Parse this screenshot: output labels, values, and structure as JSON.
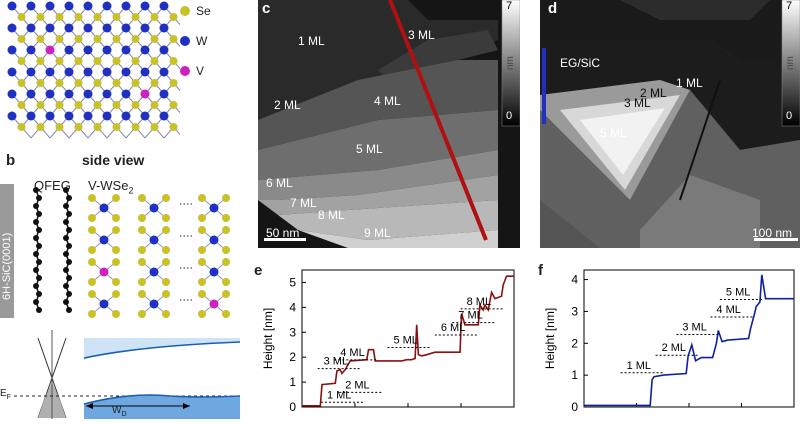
{
  "panel_b": {
    "label": "b",
    "side_view_title": "side view",
    "qfeg": "QFEG",
    "vwse2_main": "V-WSe",
    "vwse2_sub": "2",
    "substrate": "6H-SiC(0001)"
  },
  "legend": {
    "se": "Se",
    "w": "W",
    "v": "V"
  },
  "band_labels": {
    "ef": "E",
    "ef_sub": "F",
    "w": "W",
    "w_sub": "D"
  },
  "panel_c": {
    "label": "c",
    "ml_labels": [
      "1 ML",
      "2 ML",
      "3 ML",
      "4 ML",
      "5 ML",
      "6 ML",
      "7 ML",
      "8 ML",
      "9 ML"
    ],
    "scalebar": "50 nm",
    "colorbar_max": "7",
    "colorbar_min": "0",
    "colorbar_unit": "nm"
  },
  "panel_d": {
    "label": "d",
    "eg_label": "EG/SiC",
    "ml_labels": [
      "1 ML",
      "2 ML",
      "3 ML",
      "5 ML"
    ],
    "scalebar": "100 nm",
    "colorbar_max": "7",
    "colorbar_min": "0",
    "colorbar_unit": "nm"
  },
  "chart_data": [
    {
      "panel": "e",
      "type": "line",
      "ylabel": "Height [nm]",
      "xlabel": "",
      "ylim": [
        0,
        5.5
      ],
      "yticks": [
        "0",
        "1",
        "2",
        "3",
        "4",
        "5"
      ],
      "color": "#8b1010",
      "series": [
        {
          "values": [
            [
              0,
              0.05
            ],
            [
              22,
              0.05
            ],
            [
              24,
              0.9
            ],
            [
              40,
              0.95
            ],
            [
              42,
              1.45
            ],
            [
              46,
              1.5
            ],
            [
              48,
              1.35
            ],
            [
              52,
              1.5
            ],
            [
              58,
              1.85
            ],
            [
              78,
              1.9
            ],
            [
              80,
              2.3
            ],
            [
              86,
              2.3
            ],
            [
              88,
              1.85
            ],
            [
              120,
              1.85
            ],
            [
              126,
              1.9
            ],
            [
              132,
              1.9
            ],
            [
              136,
              1.95
            ],
            [
              138,
              3.3
            ],
            [
              140,
              2.1
            ],
            [
              144,
              2.05
            ],
            [
              150,
              2.1
            ],
            [
              160,
              2.2
            ],
            [
              190,
              2.2
            ],
            [
              192,
              3.75
            ],
            [
              196,
              3.3
            ],
            [
              212,
              3.3
            ],
            [
              214,
              4.1
            ],
            [
              218,
              3.9
            ],
            [
              220,
              4.1
            ],
            [
              224,
              3.9
            ],
            [
              228,
              4.6
            ],
            [
              232,
              4.35
            ],
            [
              240,
              4.45
            ],
            [
              242,
              4.9
            ],
            [
              246,
              5.25
            ],
            [
              255,
              5.25
            ]
          ]
        }
      ],
      "annotations": [
        {
          "text": "1 ML",
          "x": 30,
          "y": 0.35
        },
        {
          "text": "2 ML",
          "x": 52,
          "y": 0.75
        },
        {
          "text": "3 ML",
          "x": 26,
          "y": 1.7
        },
        {
          "text": "4 ML",
          "x": 46,
          "y": 2.05
        },
        {
          "text": "5 ML",
          "x": 110,
          "y": 2.55
        },
        {
          "text": "6 ML",
          "x": 167,
          "y": 3.05
        },
        {
          "text": "7 ML",
          "x": 188,
          "y": 3.55
        },
        {
          "text": "8 ML",
          "x": 198,
          "y": 4.1
        }
      ]
    },
    {
      "panel": "f",
      "type": "line",
      "ylabel": "Height [nm]",
      "xlabel": "",
      "ylim": [
        0,
        4.3
      ],
      "yticks": [
        "0",
        "1",
        "2",
        "3",
        "4"
      ],
      "color": "#1020a0",
      "series": [
        {
          "values": [
            [
              0,
              0.05
            ],
            [
              70,
              0.05
            ],
            [
              72,
              0.85
            ],
            [
              74,
              0.95
            ],
            [
              84,
              1.0
            ],
            [
              108,
              1.05
            ],
            [
              110,
              1.6
            ],
            [
              114,
              1.95
            ],
            [
              118,
              1.45
            ],
            [
              124,
              1.55
            ],
            [
              136,
              1.55
            ],
            [
              140,
              2.0
            ],
            [
              142,
              2.4
            ],
            [
              146,
              2.05
            ],
            [
              152,
              2.1
            ],
            [
              174,
              2.15
            ],
            [
              176,
              2.45
            ],
            [
              180,
              2.9
            ],
            [
              182,
              3.15
            ],
            [
              186,
              3.3
            ],
            [
              188,
              4.15
            ],
            [
              192,
              3.4
            ],
            [
              222,
              3.4
            ]
          ]
        }
      ],
      "annotations": [
        {
          "text": "1 ML",
          "x": 45,
          "y": 1.2
        },
        {
          "text": "2 ML",
          "x": 82,
          "y": 1.75
        },
        {
          "text": "3 ML",
          "x": 104,
          "y": 2.4
        },
        {
          "text": "4 ML",
          "x": 140,
          "y": 2.95
        },
        {
          "text": "5 ML",
          "x": 150,
          "y": 3.5
        }
      ]
    }
  ]
}
